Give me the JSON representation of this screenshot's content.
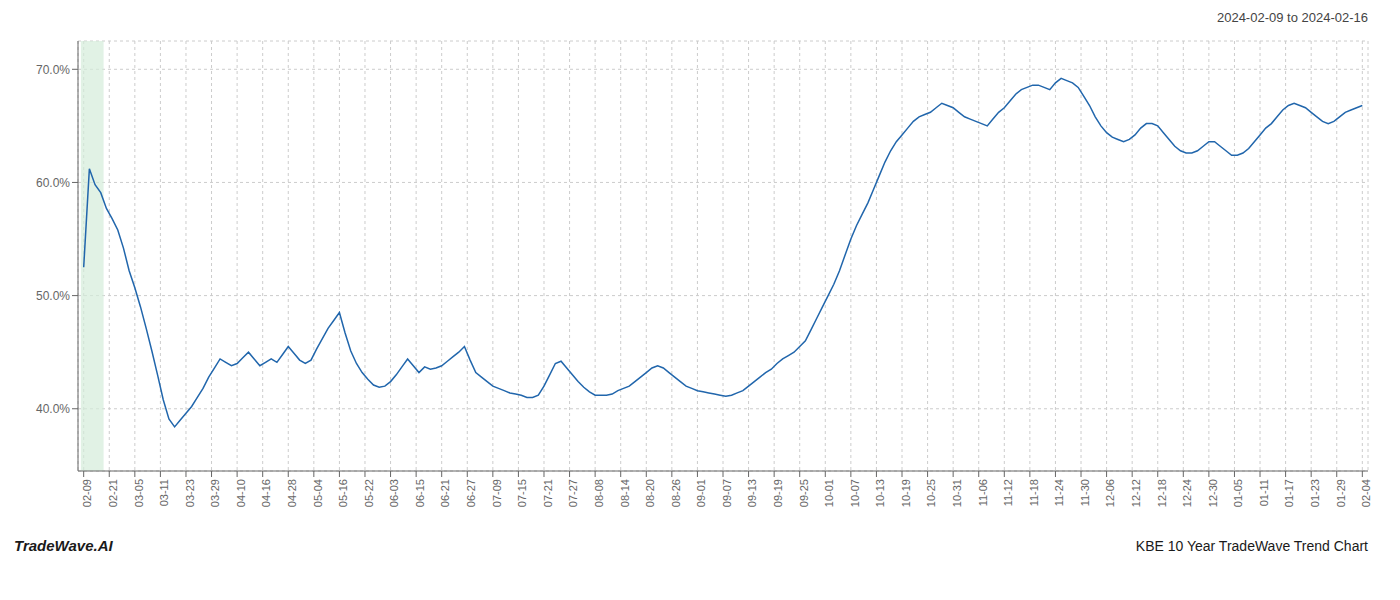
{
  "chart_data": {
    "type": "line",
    "title": "2024-02-09 to 2024-02-16",
    "annotations": [
      "TradeWave.AI",
      "KBE 10 Year TradeWave Trend Chart"
    ],
    "color": "#2166ac",
    "grid": true,
    "highlight": {
      "x": [
        -0.5,
        3.5
      ],
      "color": "#d4edda"
    },
    "ylim": [
      0.345,
      0.725
    ],
    "yticks": [
      {
        "value": 0.4,
        "label": "40.0%"
      },
      {
        "value": 0.5,
        "label": "50.0%"
      },
      {
        "value": 0.6,
        "label": "60.0%"
      },
      {
        "value": 0.7,
        "label": "70.0%"
      }
    ],
    "xlim": [
      -1,
      226
    ],
    "xticks": [
      {
        "value": 0,
        "label": "02-09"
      },
      {
        "value": 4.5,
        "label": "02-21"
      },
      {
        "value": 9,
        "label": "03-05"
      },
      {
        "value": 13.5,
        "label": "03-11"
      },
      {
        "value": 18,
        "label": "03-23"
      },
      {
        "value": 22.5,
        "label": "03-29"
      },
      {
        "value": 27,
        "label": "04-10"
      },
      {
        "value": 31.5,
        "label": "04-16"
      },
      {
        "value": 36,
        "label": "04-28"
      },
      {
        "value": 40.5,
        "label": "05-04"
      },
      {
        "value": 45,
        "label": "05-16"
      },
      {
        "value": 49.5,
        "label": "05-22"
      },
      {
        "value": 54,
        "label": "06-03"
      },
      {
        "value": 58.5,
        "label": "06-15"
      },
      {
        "value": 63,
        "label": "06-21"
      },
      {
        "value": 67.5,
        "label": "06-27"
      },
      {
        "value": 72,
        "label": "07-09"
      },
      {
        "value": 76.5,
        "label": "07-15"
      },
      {
        "value": 81,
        "label": "07-21"
      },
      {
        "value": 85.5,
        "label": "07-27"
      },
      {
        "value": 90,
        "label": "08-08"
      },
      {
        "value": 94.5,
        "label": "08-14"
      },
      {
        "value": 99,
        "label": "08-20"
      },
      {
        "value": 103.5,
        "label": "08-26"
      },
      {
        "value": 108,
        "label": "09-01"
      },
      {
        "value": 112.5,
        "label": "09-07"
      },
      {
        "value": 117,
        "label": "09-13"
      },
      {
        "value": 121.5,
        "label": "09-19"
      },
      {
        "value": 126,
        "label": "09-25"
      },
      {
        "value": 130.5,
        "label": "10-01"
      },
      {
        "value": 135,
        "label": "10-07"
      },
      {
        "value": 139.5,
        "label": "10-13"
      },
      {
        "value": 144,
        "label": "10-19"
      },
      {
        "value": 148.5,
        "label": "10-25"
      },
      {
        "value": 153,
        "label": "10-31"
      },
      {
        "value": 157.5,
        "label": "11-06"
      },
      {
        "value": 162,
        "label": "11-12"
      },
      {
        "value": 166.5,
        "label": "11-18"
      },
      {
        "value": 171,
        "label": "11-24"
      },
      {
        "value": 175.5,
        "label": "11-30"
      },
      {
        "value": 180,
        "label": "12-06"
      },
      {
        "value": 184.5,
        "label": "12-12"
      },
      {
        "value": 189,
        "label": "12-18"
      },
      {
        "value": 193.5,
        "label": "12-24"
      },
      {
        "value": 198,
        "label": "12-30"
      },
      {
        "value": 202.5,
        "label": "01-05"
      },
      {
        "value": 207,
        "label": "01-11"
      },
      {
        "value": 211.5,
        "label": "01-17"
      },
      {
        "value": 216,
        "label": "01-23"
      },
      {
        "value": 220.5,
        "label": "01-29"
      },
      {
        "value": 225,
        "label": "02-04"
      }
    ],
    "x": [
      0,
      1,
      2,
      3,
      4,
      5,
      6,
      7,
      8,
      9,
      10,
      11,
      12,
      13,
      14,
      15,
      16,
      17,
      18,
      19,
      20,
      21,
      22,
      23,
      24,
      25,
      26,
      27,
      28,
      29,
      30,
      31,
      32,
      33,
      34,
      35,
      36,
      37,
      38,
      39,
      40,
      41,
      42,
      43,
      44,
      45,
      46,
      47,
      48,
      49,
      50,
      51,
      52,
      53,
      54,
      55,
      56,
      57,
      58,
      59,
      60,
      61,
      62,
      63,
      64,
      65,
      66,
      67,
      68,
      69,
      70,
      71,
      72,
      73,
      74,
      75,
      76,
      77,
      78,
      79,
      80,
      81,
      82,
      83,
      84,
      85,
      86,
      87,
      88,
      89,
      90,
      91,
      92,
      93,
      94,
      95,
      96,
      97,
      98,
      99,
      100,
      101,
      102,
      103,
      104,
      105,
      106,
      107,
      108,
      109,
      110,
      111,
      112,
      113,
      114,
      115,
      116,
      117,
      118,
      119,
      120,
      121,
      122,
      123,
      124,
      125,
      126,
      127,
      128,
      129,
      130,
      131,
      132,
      133,
      134,
      135,
      136,
      137,
      138,
      139,
      140,
      141,
      142,
      143,
      144,
      145,
      146,
      147,
      148,
      149,
      150,
      151,
      152,
      153,
      154,
      155,
      156,
      157,
      158,
      159,
      160,
      161,
      162,
      163,
      164,
      165,
      166,
      167,
      168,
      169,
      170,
      171,
      172,
      173,
      174,
      175,
      176,
      177,
      178,
      179,
      180,
      181,
      182,
      183,
      184,
      185,
      186,
      187,
      188,
      189,
      190,
      191,
      192,
      193,
      194,
      195,
      196,
      197,
      198,
      199,
      200,
      201,
      202,
      203,
      204,
      205,
      206,
      207,
      208,
      209,
      210,
      211,
      212,
      213,
      214,
      215,
      216,
      217,
      218,
      219,
      220,
      221,
      222,
      223,
      224,
      225
    ],
    "values": [
      0.525,
      0.612,
      0.598,
      0.591,
      0.577,
      0.568,
      0.558,
      0.542,
      0.522,
      0.507,
      0.49,
      0.471,
      0.451,
      0.43,
      0.408,
      0.391,
      0.384,
      0.39,
      0.396,
      0.402,
      0.41,
      0.418,
      0.428,
      0.436,
      0.444,
      0.441,
      0.438,
      0.44,
      0.445,
      0.45,
      0.444,
      0.438,
      0.441,
      0.444,
      0.441,
      0.448,
      0.455,
      0.449,
      0.443,
      0.44,
      0.443,
      0.453,
      0.462,
      0.471,
      0.478,
      0.485,
      0.467,
      0.451,
      0.44,
      0.432,
      0.426,
      0.421,
      0.419,
      0.42,
      0.424,
      0.43,
      0.437,
      0.444,
      0.438,
      0.432,
      0.437,
      0.435,
      0.436,
      0.438,
      0.442,
      0.446,
      0.45,
      0.455,
      0.443,
      0.432,
      0.428,
      0.424,
      0.42,
      0.418,
      0.416,
      0.414,
      0.413,
      0.412,
      0.41,
      0.41,
      0.412,
      0.42,
      0.43,
      0.44,
      0.442,
      0.436,
      0.43,
      0.424,
      0.419,
      0.415,
      0.412,
      0.412,
      0.412,
      0.413,
      0.416,
      0.418,
      0.42,
      0.424,
      0.428,
      0.432,
      0.436,
      0.438,
      0.436,
      0.432,
      0.428,
      0.424,
      0.42,
      0.418,
      0.416,
      0.415,
      0.414,
      0.413,
      0.412,
      0.411,
      0.412,
      0.414,
      0.416,
      0.42,
      0.424,
      0.428,
      0.432,
      0.435,
      0.44,
      0.444,
      0.447,
      0.45,
      0.455,
      0.46,
      0.47,
      0.48,
      0.49,
      0.5,
      0.51,
      0.522,
      0.536,
      0.55,
      0.562,
      0.572,
      0.582,
      0.594,
      0.606,
      0.618,
      0.628,
      0.636,
      0.642,
      0.648,
      0.654,
      0.658,
      0.66,
      0.662,
      0.666,
      0.67,
      0.668,
      0.666,
      0.662,
      0.658,
      0.656,
      0.654,
      0.652,
      0.65,
      0.656,
      0.662,
      0.666,
      0.672,
      0.678,
      0.682,
      0.684,
      0.686,
      0.686,
      0.684,
      0.682,
      0.688,
      0.692,
      0.69,
      0.688,
      0.684,
      0.676,
      0.668,
      0.658,
      0.65,
      0.644,
      0.64,
      0.638,
      0.636,
      0.638,
      0.642,
      0.648,
      0.652,
      0.652,
      0.65,
      0.644,
      0.638,
      0.632,
      0.628,
      0.626,
      0.626,
      0.628,
      0.632,
      0.636,
      0.636,
      0.632,
      0.628,
      0.624,
      0.624,
      0.626,
      0.63,
      0.636,
      0.642,
      0.648,
      0.652,
      0.658,
      0.664,
      0.668,
      0.67,
      0.668,
      0.666,
      0.662,
      0.658,
      0.654,
      0.652,
      0.654,
      0.658,
      0.662,
      0.664,
      0.666,
      0.668
    ]
  }
}
